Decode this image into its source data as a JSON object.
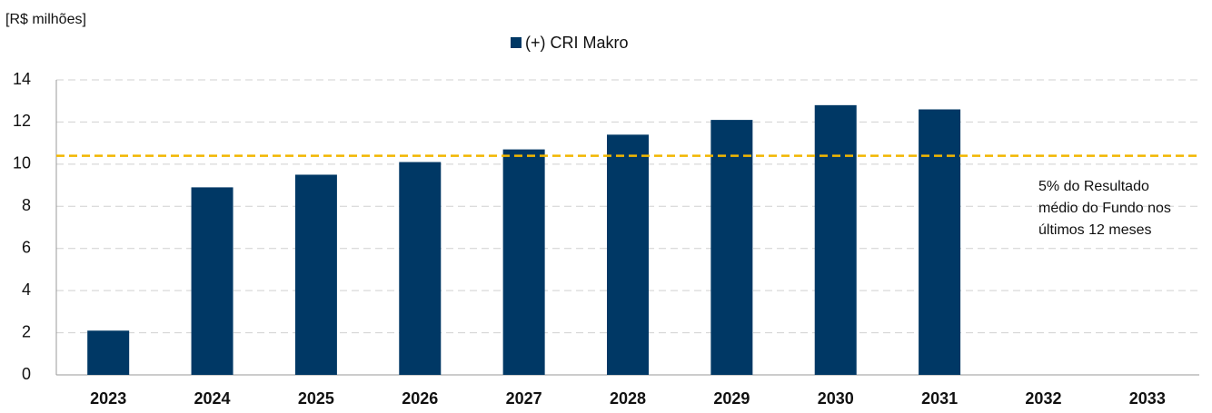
{
  "chart_data": {
    "type": "bar",
    "unit_label": "[R$ milhões]",
    "categories": [
      "2023",
      "2024",
      "2025",
      "2026",
      "2027",
      "2028",
      "2029",
      "2030",
      "2031",
      "2032",
      "2033"
    ],
    "series": [
      {
        "name": "(+) CRI Makro",
        "color": "#003865",
        "values": [
          2.1,
          8.9,
          9.5,
          10.1,
          10.7,
          11.4,
          12.1,
          12.8,
          12.6,
          null,
          null
        ]
      }
    ],
    "ylim": [
      0,
      14
    ],
    "yticks": [
      0,
      2,
      4,
      6,
      8,
      10,
      12,
      14
    ],
    "grid": true,
    "reference_line": {
      "value": 10.4,
      "color": "#f2b600"
    },
    "annotation": [
      "5% do Resultado",
      "médio do Fundo nos",
      "últimos 12 meses"
    ],
    "legend": "top"
  }
}
